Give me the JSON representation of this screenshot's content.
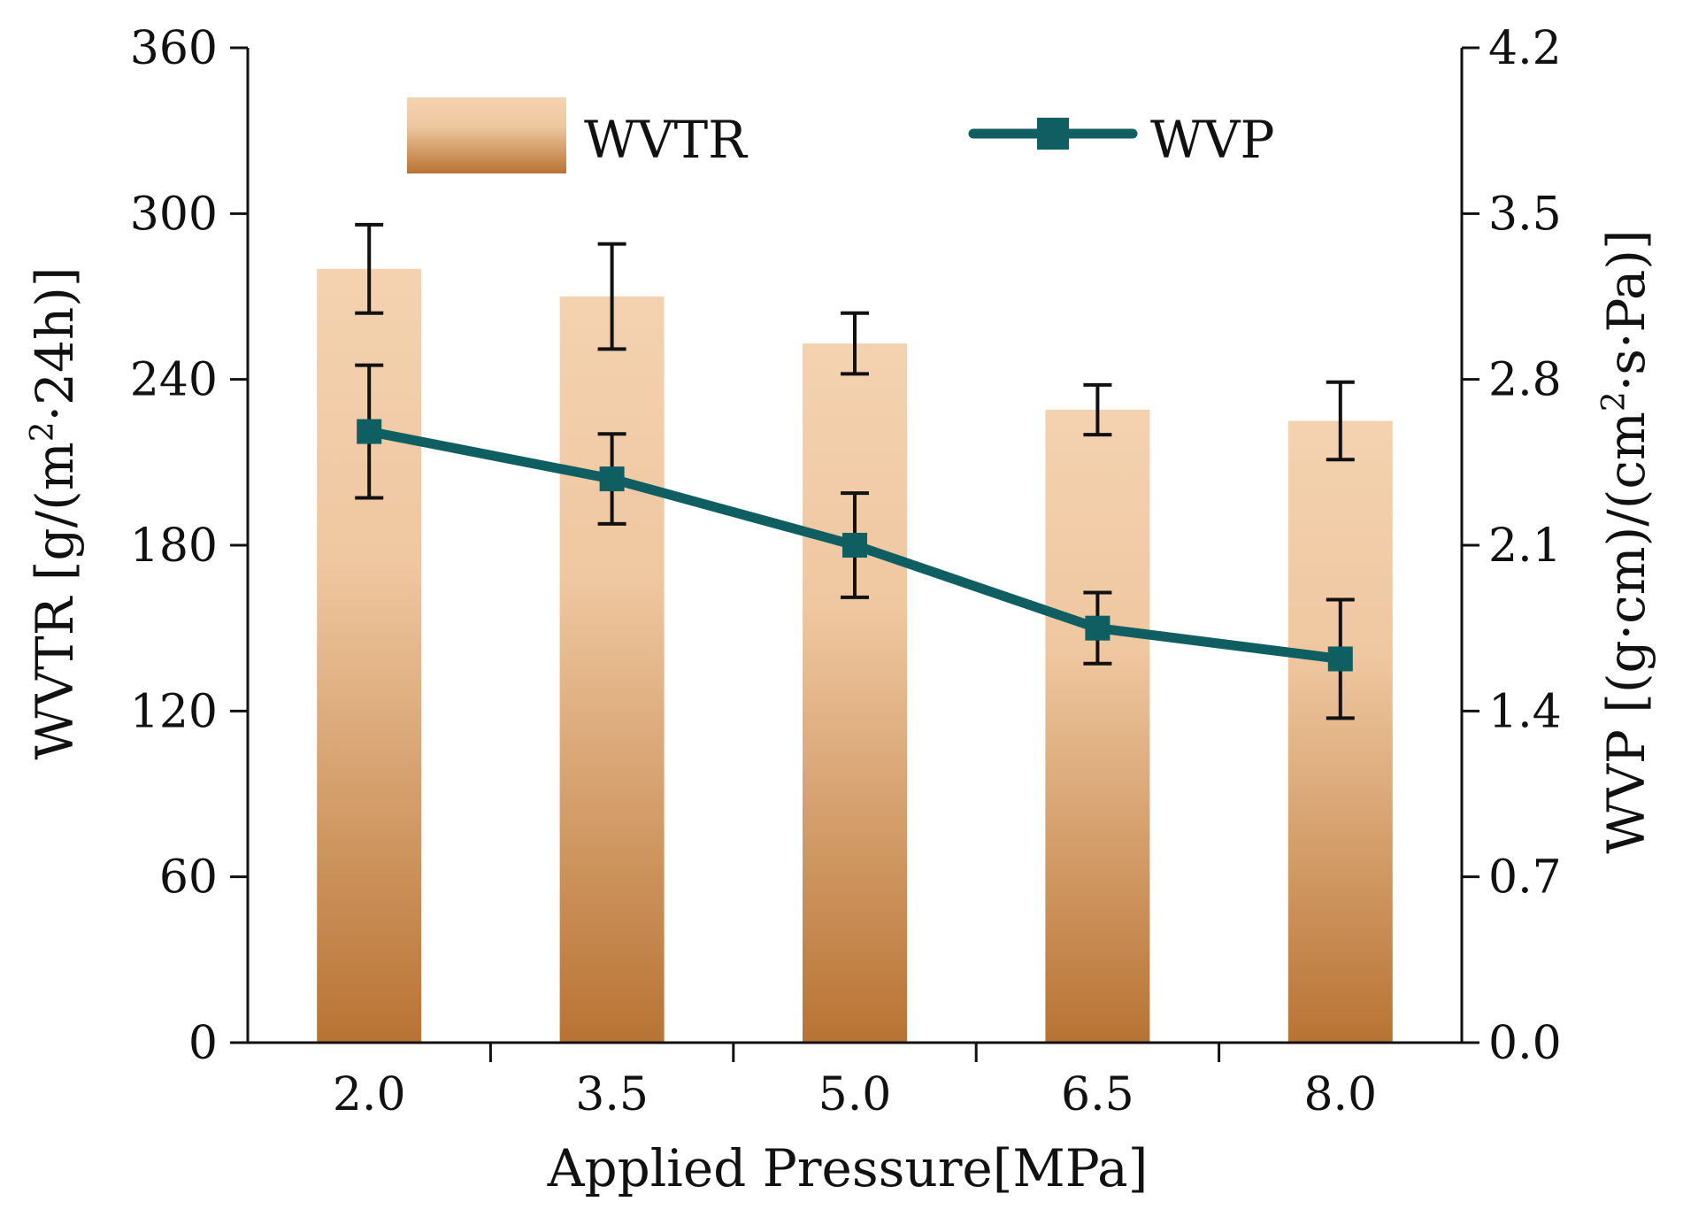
{
  "chart_data": {
    "type": "bar",
    "xlabel": "Applied Pressure[MPa]",
    "categories": [
      "2.0",
      "3.5",
      "5.0",
      "6.5",
      "8.0"
    ],
    "left_axis": {
      "label_text": "WVTR [g/(m",
      "label_sup": "2",
      "label_tail": "·24h)]",
      "ylim": [
        0,
        360
      ],
      "ticks": [
        "0",
        "60",
        "120",
        "180",
        "240",
        "300",
        "360"
      ]
    },
    "right_axis": {
      "label_text": "WVP [(g·cm)/(cm",
      "label_sup": "2",
      "label_tail": "·s·Pa)]",
      "ylim": [
        0,
        4.2
      ],
      "ticks": [
        "0.0",
        "0.7",
        "1.4",
        "2.1",
        "2.8",
        "3.5",
        "4.2"
      ]
    },
    "series": [
      {
        "name": "WVTR",
        "kind": "bar",
        "axis": "left",
        "values": [
          280,
          270,
          253,
          229,
          225
        ],
        "errors": [
          16,
          19,
          11,
          9,
          14
        ]
      },
      {
        "name": "WVP",
        "kind": "line",
        "axis": "right",
        "values": [
          2.58,
          2.38,
          2.1,
          1.75,
          1.62
        ],
        "errors": [
          0.28,
          0.19,
          0.22,
          0.15,
          0.25
        ]
      }
    ],
    "colors": {
      "bar_top": "#f4d2b0",
      "bar_bottom": "#b87333",
      "line": "#0f5e62",
      "error": "#111111",
      "axis": "#111111"
    },
    "legend": [
      "WVTR",
      "WVP"
    ]
  }
}
